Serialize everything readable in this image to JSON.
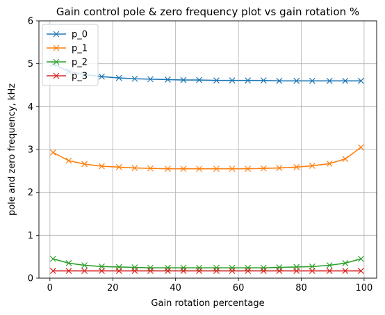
{
  "chart_data": {
    "type": "line",
    "title": "Gain control pole & zero frequency plot vs gain rotation %",
    "xlabel": "Gain rotation percentage",
    "ylabel": "pole and zero frequency, kHz",
    "xlim": [
      -3.5,
      104
    ],
    "ylim": [
      0,
      6
    ],
    "xticks": [
      0,
      20,
      40,
      60,
      80,
      100
    ],
    "yticks": [
      0,
      1,
      2,
      3,
      4,
      5,
      6
    ],
    "grid": true,
    "legend_position": "upper-left",
    "marker": "x",
    "x": [
      1,
      6,
      11,
      16.5,
      22,
      27,
      32,
      37.5,
      42.5,
      47.5,
      53,
      58,
      63,
      68,
      73,
      78.5,
      83.5,
      89,
      94,
      99
    ],
    "series": [
      {
        "name": "p_0",
        "color": "#1f77b4",
        "values": [
          5.0,
          4.82,
          4.75,
          4.7,
          4.67,
          4.65,
          4.64,
          4.63,
          4.62,
          4.62,
          4.61,
          4.61,
          4.61,
          4.61,
          4.6,
          4.6,
          4.6,
          4.6,
          4.6,
          4.6
        ]
      },
      {
        "name": "p_1",
        "color": "#ff7f0e",
        "values": [
          2.93,
          2.74,
          2.66,
          2.61,
          2.59,
          2.57,
          2.56,
          2.55,
          2.55,
          2.55,
          2.55,
          2.55,
          2.55,
          2.56,
          2.57,
          2.59,
          2.62,
          2.67,
          2.78,
          3.05
        ]
      },
      {
        "name": "p_2",
        "color": "#2ca02c",
        "values": [
          0.45,
          0.35,
          0.3,
          0.27,
          0.26,
          0.25,
          0.24,
          0.24,
          0.24,
          0.24,
          0.24,
          0.24,
          0.24,
          0.24,
          0.25,
          0.26,
          0.27,
          0.3,
          0.35,
          0.45
        ]
      },
      {
        "name": "p_3",
        "color": "#d62728",
        "values": [
          0.17,
          0.17,
          0.17,
          0.17,
          0.17,
          0.17,
          0.17,
          0.17,
          0.17,
          0.17,
          0.17,
          0.17,
          0.17,
          0.17,
          0.17,
          0.17,
          0.17,
          0.17,
          0.17,
          0.17
        ]
      }
    ]
  }
}
